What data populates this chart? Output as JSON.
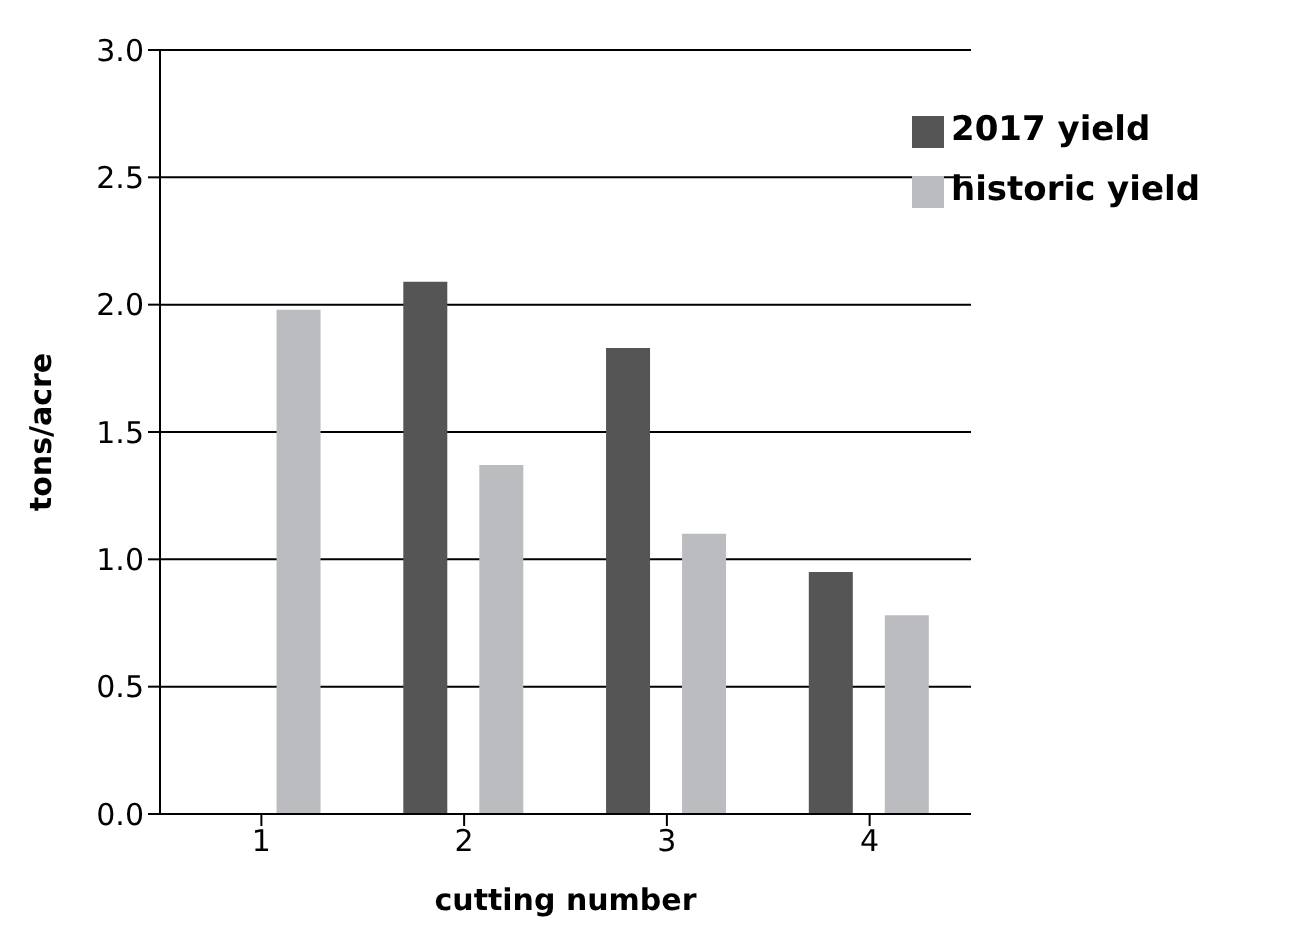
{
  "chart_data": {
    "type": "bar",
    "xlabel": "cutting number",
    "ylabel": "tons/acre",
    "categories": [
      "1",
      "2",
      "3",
      "4"
    ],
    "series": [
      {
        "name": "2017 yield",
        "color": "#555555",
        "values": [
          null,
          2.09,
          1.83,
          0.95
        ]
      },
      {
        "name": "historic yield",
        "color": "#bbbcc0",
        "values": [
          1.98,
          1.37,
          1.1,
          0.78
        ]
      }
    ],
    "ylim": [
      0,
      3
    ],
    "yticks": [
      {
        "value": 0,
        "label": "0.0"
      },
      {
        "value": 0.5,
        "label": "0.5"
      },
      {
        "value": 1,
        "label": "1.0"
      },
      {
        "value": 1.5,
        "label": "1.5"
      },
      {
        "value": 2,
        "label": "2.0"
      },
      {
        "value": 2.5,
        "label": "2.5"
      },
      {
        "value": 3,
        "label": "3.0"
      }
    ],
    "grid": "y",
    "legend": "top right"
  }
}
